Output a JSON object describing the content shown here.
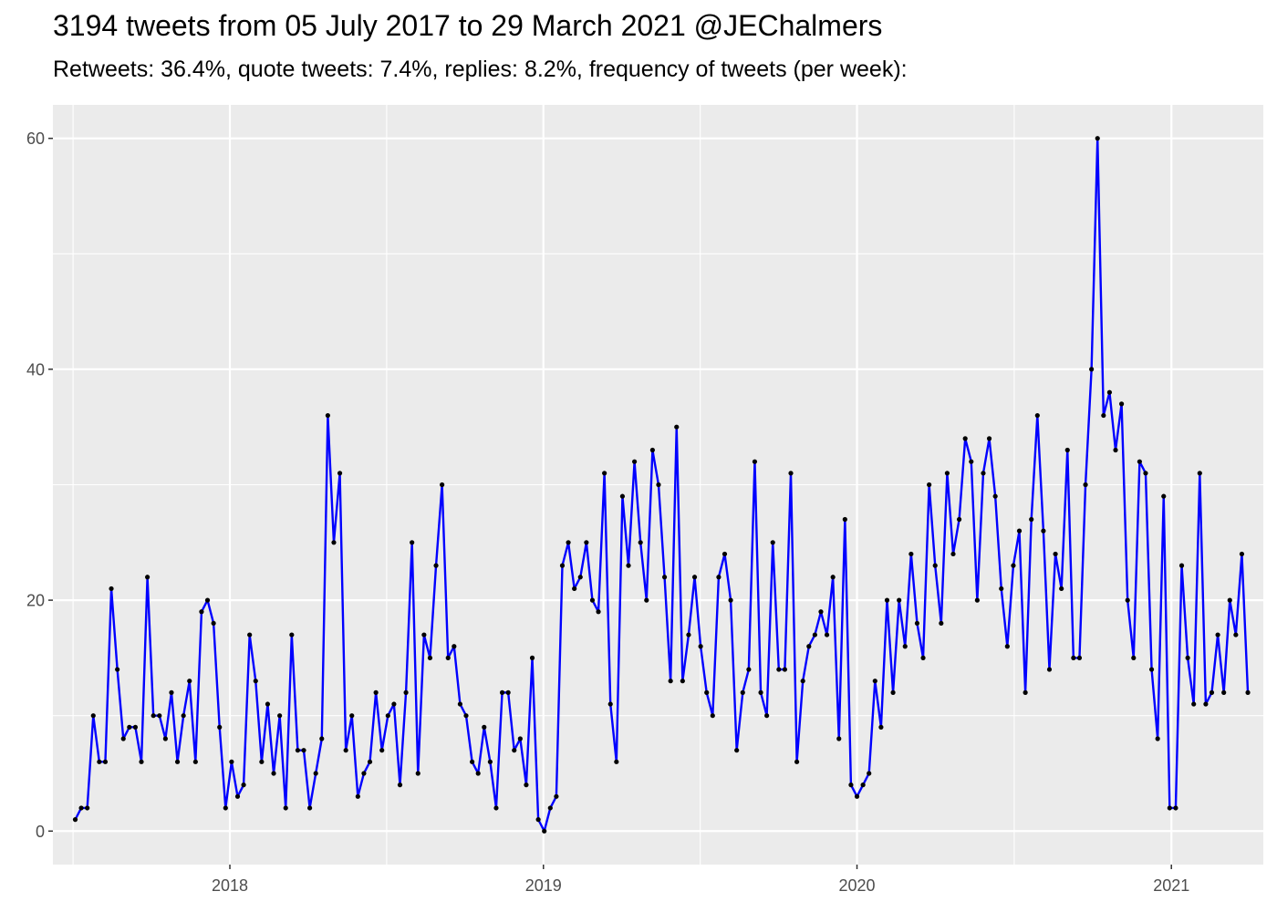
{
  "chart_data": {
    "type": "line",
    "title": "3194 tweets from 05 July 2017 to 29 March 2021 @JEChalmers",
    "subtitle": "Retweets: 36.4%, quote tweets: 7.4%, replies: 8.2%, frequency of tweets (per week):",
    "xlabel": "",
    "ylabel": "",
    "x_start_date": "2017-07-05",
    "x_interval_days": 7,
    "xlim": [
      "2017-06-09",
      "2021-04-18"
    ],
    "ylim": [
      -2.9,
      62.9
    ],
    "x_ticks": [
      {
        "label": "2018",
        "date": "2018-01-01"
      },
      {
        "label": "2019",
        "date": "2019-01-01"
      },
      {
        "label": "2020",
        "date": "2020-01-01"
      },
      {
        "label": "2021",
        "date": "2021-01-01"
      }
    ],
    "y_ticks": [
      0,
      20,
      40,
      60
    ],
    "grid": true,
    "background": "#EBEBEB",
    "line_color": "#0000FF",
    "point_color": "#000000",
    "series": [
      {
        "values": [
          1,
          2,
          2,
          10,
          6,
          6,
          21,
          14,
          8,
          9,
          9,
          6,
          22,
          10,
          10,
          8,
          12,
          6,
          10,
          13,
          6,
          19,
          20,
          18,
          9,
          2,
          6,
          3,
          4,
          17,
          13,
          6,
          11,
          5,
          10,
          2,
          17,
          7,
          7,
          2,
          5,
          8,
          36,
          25,
          31,
          7,
          10,
          3,
          5,
          6,
          12,
          7,
          10,
          11,
          4,
          12,
          25,
          5,
          17,
          15,
          23,
          30,
          15,
          16,
          11,
          10,
          6,
          5,
          9,
          6,
          2,
          12,
          12,
          7,
          8,
          4,
          15,
          1,
          0,
          2,
          3,
          23,
          25,
          21,
          22,
          25,
          20,
          19,
          31,
          11,
          6,
          29,
          23,
          32,
          25,
          20,
          33,
          30,
          22,
          13,
          35,
          13,
          17,
          22,
          16,
          12,
          10,
          22,
          24,
          20,
          7,
          12,
          14,
          32,
          12,
          10,
          25,
          14,
          14,
          31,
          6,
          13,
          16,
          17,
          19,
          17,
          22,
          8,
          27,
          4,
          3,
          4,
          5,
          13,
          9,
          20,
          12,
          20,
          16,
          24,
          18,
          15,
          30,
          23,
          18,
          31,
          24,
          27,
          34,
          32,
          20,
          31,
          34,
          29,
          21,
          16,
          23,
          26,
          12,
          27,
          36,
          26,
          14,
          24,
          21,
          33,
          15,
          15,
          30,
          40,
          60,
          36,
          38,
          33,
          37,
          20,
          15,
          32,
          31,
          14,
          8,
          29,
          2,
          2,
          23,
          15,
          11,
          31,
          11,
          12,
          17,
          12,
          20,
          17,
          24,
          12
        ]
      }
    ]
  }
}
